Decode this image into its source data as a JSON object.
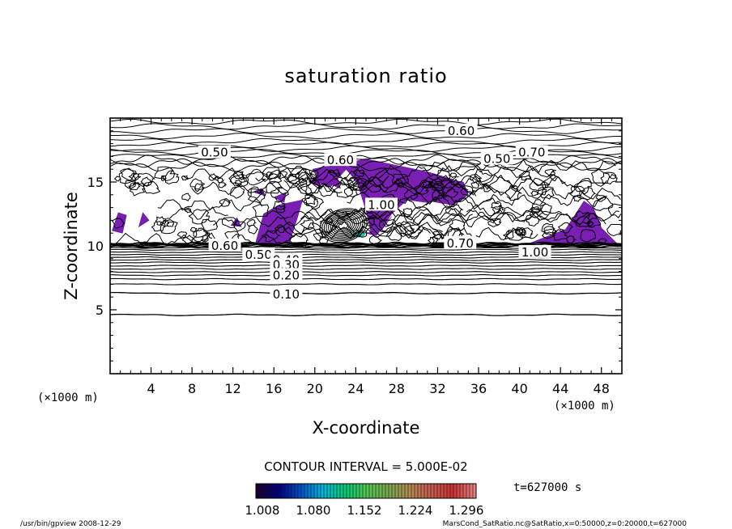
{
  "chart_data": {
    "type": "contour",
    "title": "saturation ratio",
    "xlabel": "X-coordinate",
    "ylabel": "Z-coordinate",
    "x_unit": "(×1000 m)",
    "y_unit": "(×1000 m)",
    "xlim": [
      0,
      50
    ],
    "ylim": [
      0,
      20
    ],
    "x_ticks": [
      4,
      8,
      12,
      16,
      20,
      24,
      28,
      32,
      36,
      40,
      44,
      48
    ],
    "y_ticks": [
      5,
      10,
      15
    ],
    "contour_interval_text": "CONTOUR INTERVAL = 5.000E-02",
    "contour_labels": [
      {
        "text": "0.60",
        "x": 34.3,
        "z": 19.0
      },
      {
        "text": "0.50",
        "x": 10.2,
        "z": 17.3
      },
      {
        "text": "0.70",
        "x": 41.2,
        "z": 17.3
      },
      {
        "text": "0.50",
        "x": 37.8,
        "z": 16.8
      },
      {
        "text": "0.60",
        "x": 22.5,
        "z": 16.7
      },
      {
        "text": "0.60",
        "x": 11.2,
        "z": 10.0
      },
      {
        "text": "0.50",
        "x": 14.5,
        "z": 9.3
      },
      {
        "text": "0.40",
        "x": 17.2,
        "z": 8.9
      },
      {
        "text": "0.30",
        "x": 17.2,
        "z": 8.5
      },
      {
        "text": "0.20",
        "x": 17.2,
        "z": 7.7
      },
      {
        "text": "0.10",
        "x": 17.2,
        "z": 6.2
      },
      {
        "text": "1.00",
        "x": 26.5,
        "z": 13.2
      },
      {
        "text": "0.70",
        "x": 34.2,
        "z": 10.2
      },
      {
        "text": "1.00",
        "x": 41.5,
        "z": 9.5
      }
    ],
    "shaded_range": [
      1.0,
      1.33
    ],
    "colorbar": {
      "tick_labels": [
        "1.008",
        "1.080",
        "1.152",
        "1.224",
        "1.296"
      ],
      "colors": [
        "#1a0033",
        "#000080",
        "#0050c8",
        "#00b4dc",
        "#00c878",
        "#50c850",
        "#78aa50",
        "#b48c50",
        "#c85a50",
        "#c83232",
        "#e68282"
      ]
    },
    "time_label": "t=627000 s",
    "grid": false
  },
  "footer": {
    "left": "/usr/bin/gpview   2008-12-29",
    "right": "MarsCond_SatRatio.nc@SatRatio,x=0:50000,z=0:20000,t=627000"
  },
  "colors": {
    "shade": "#7a1fb4",
    "shade_dark": "#5a1490",
    "line": "#000000",
    "background": "#ffffff"
  }
}
